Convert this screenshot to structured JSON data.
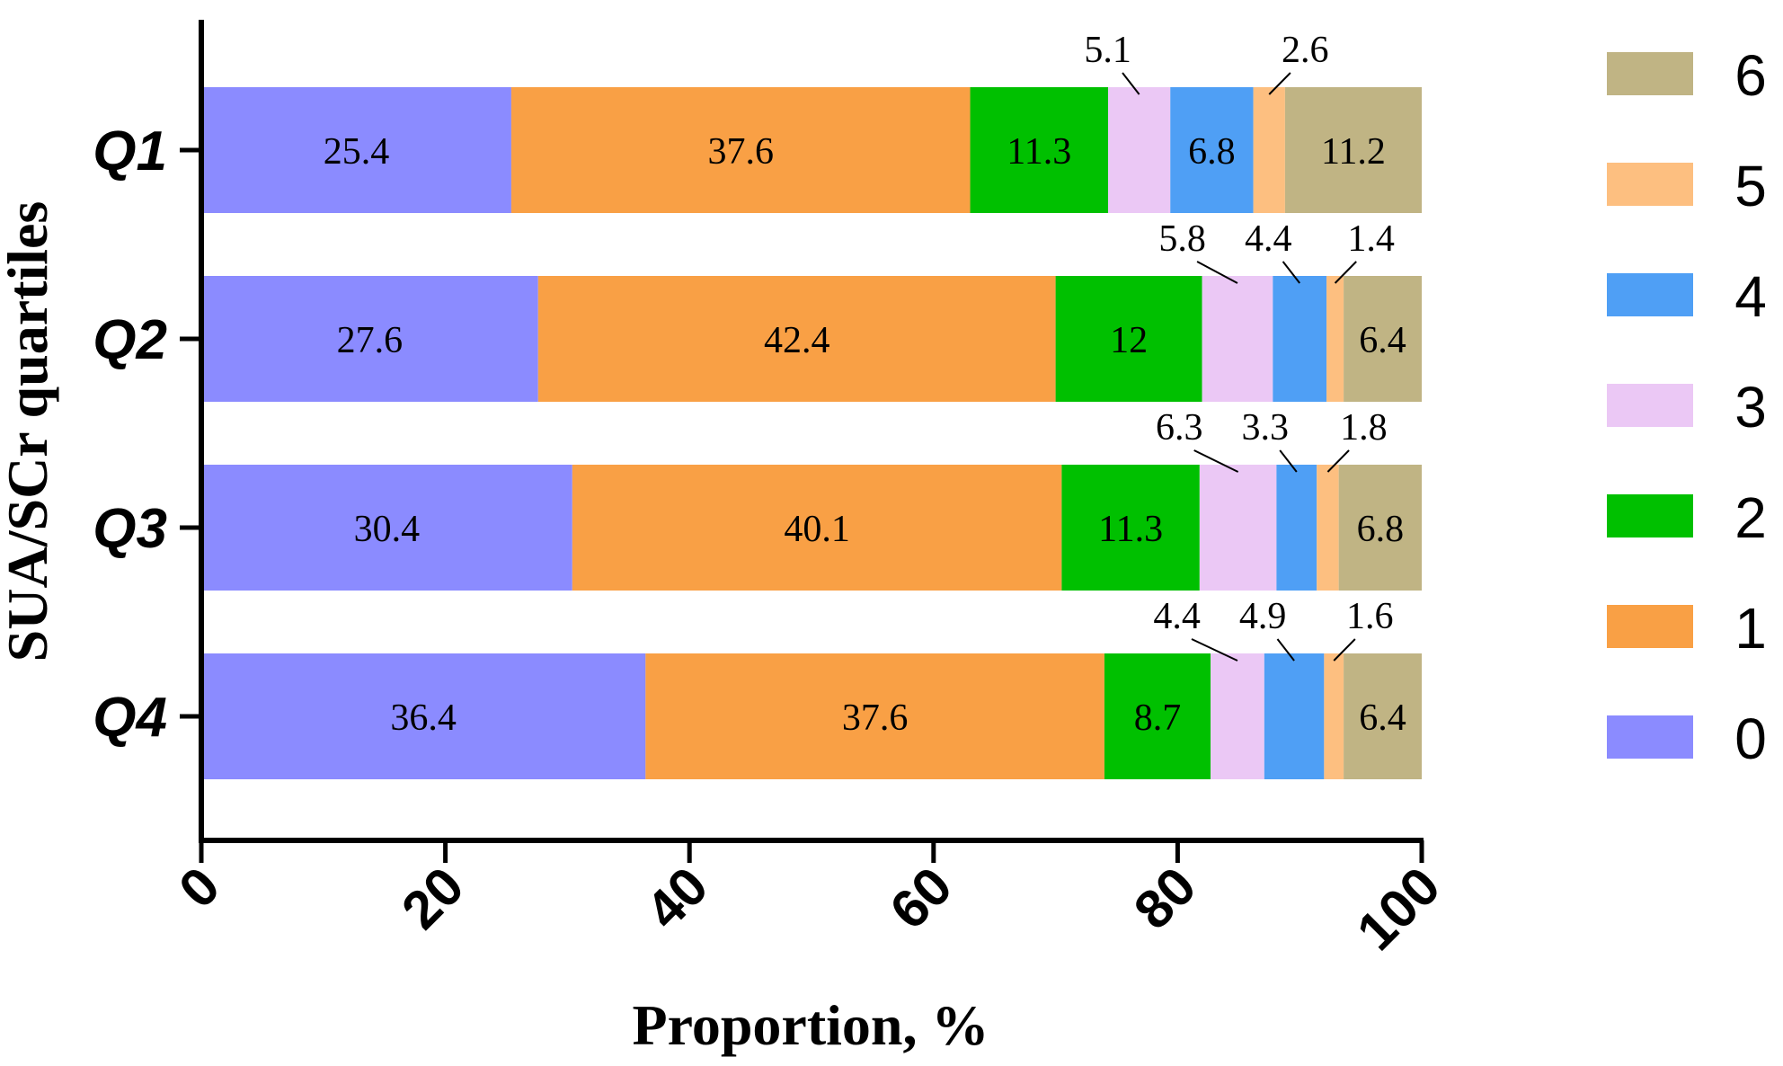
{
  "chart_data": {
    "type": "bar",
    "orientation": "horizontal",
    "stacked": true,
    "xlabel": "Proportion, %",
    "ylabel": "SUA/SCr quartiles",
    "xlim": [
      0,
      100
    ],
    "xticks": [
      "0",
      "20",
      "40",
      "60",
      "80",
      "100"
    ],
    "categories": [
      "Q1",
      "Q2",
      "Q3",
      "Q4"
    ],
    "legend_position": "right",
    "legend_order": [
      "6",
      "5",
      "4",
      "3",
      "2",
      "1",
      "0"
    ],
    "grid": false,
    "series": [
      {
        "name": "0",
        "color": "#8b8bff",
        "values": [
          25.4,
          27.6,
          30.4,
          36.4
        ],
        "labels": [
          "25.4",
          "27.6",
          "30.4",
          "36.4"
        ]
      },
      {
        "name": "1",
        "color": "#f9a045",
        "values": [
          37.6,
          42.4,
          40.1,
          37.6
        ],
        "labels": [
          "37.6",
          "42.4",
          "40.1",
          "37.6"
        ]
      },
      {
        "name": "2",
        "color": "#00c000",
        "values": [
          11.3,
          12,
          11.3,
          8.7
        ],
        "labels": [
          "11.3",
          "12",
          "11.3",
          "8.7"
        ]
      },
      {
        "name": "3",
        "color": "#ebc8f5",
        "values": [
          5.1,
          5.8,
          6.3,
          4.4
        ],
        "labels": [
          "5.1",
          "5.8",
          "6.3",
          "4.4"
        ]
      },
      {
        "name": "4",
        "color": "#4f9ff5",
        "values": [
          6.8,
          4.4,
          3.3,
          4.9
        ],
        "labels": [
          "6.8",
          "4.4",
          "3.3",
          "4.9"
        ]
      },
      {
        "name": "5",
        "color": "#fdbf80",
        "values": [
          2.6,
          1.4,
          1.8,
          1.6
        ],
        "labels": [
          "2.6",
          "1.4",
          "1.8",
          "1.6"
        ]
      },
      {
        "name": "6",
        "color": "#c0b484",
        "values": [
          11.2,
          6.4,
          6.8,
          6.4
        ],
        "labels": [
          "11.2",
          "6.4",
          "6.8",
          "6.4"
        ]
      }
    ]
  }
}
